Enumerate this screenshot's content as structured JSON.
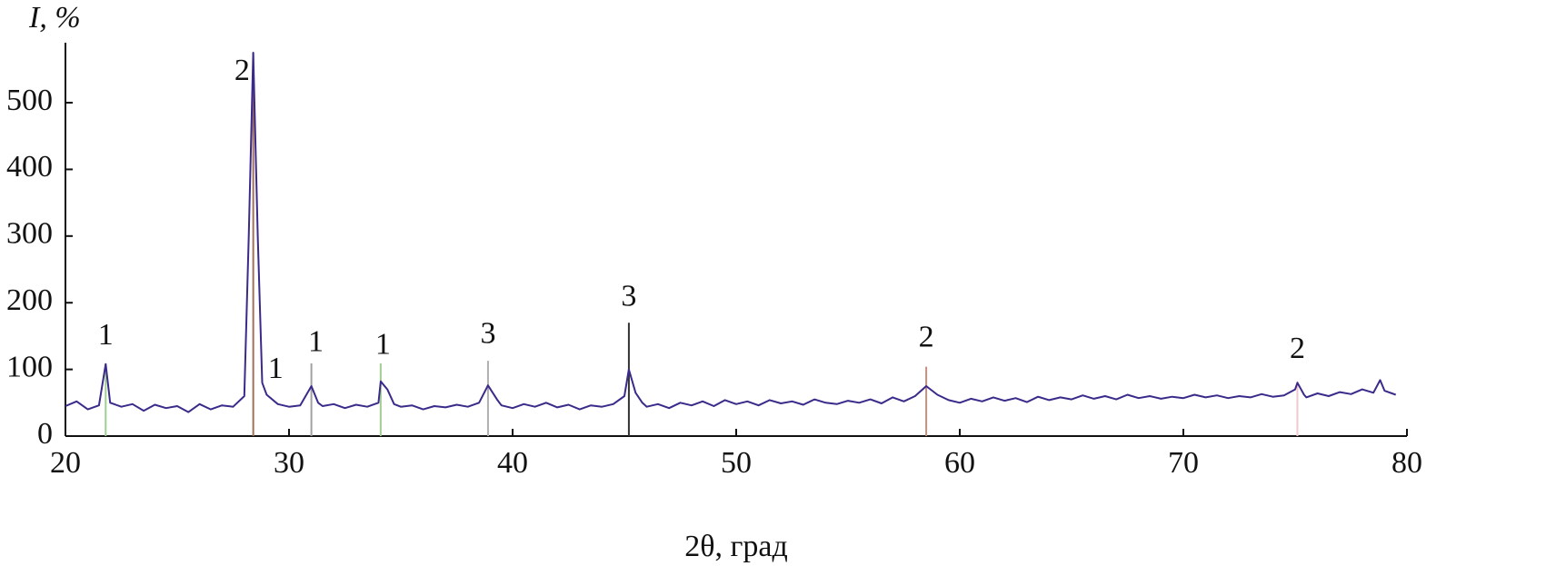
{
  "chart_data": {
    "type": "line",
    "ylabel": "I, %",
    "xlabel": "2θ, град",
    "color": "#3b2a8a",
    "xlim": [
      20,
      80
    ],
    "ylim": [
      0,
      590
    ],
    "xticks": [
      20,
      30,
      40,
      50,
      60,
      70,
      80
    ],
    "yticks": [
      0,
      100,
      200,
      300,
      400,
      500
    ],
    "grid": false,
    "x": [
      20,
      20.5,
      21,
      21.5,
      21.8,
      22,
      22.5,
      23,
      23.5,
      24,
      24.5,
      25,
      25.5,
      26,
      26.5,
      27,
      27.5,
      28,
      28.2,
      28.4,
      28.6,
      28.8,
      29,
      29.5,
      30,
      30.5,
      31,
      31.3,
      31.5,
      32,
      32.5,
      33,
      33.5,
      34,
      34.1,
      34.4,
      34.7,
      35,
      35.5,
      36,
      36.5,
      37,
      37.5,
      38,
      38.5,
      38.9,
      39.3,
      39.5,
      40,
      40.5,
      41,
      41.5,
      42,
      42.5,
      43,
      43.5,
      44,
      44.5,
      45,
      45.2,
      45.5,
      45.8,
      46,
      46.5,
      47,
      47.5,
      48,
      48.5,
      49,
      49.5,
      50,
      50.5,
      51,
      51.5,
      52,
      52.5,
      53,
      53.5,
      54,
      54.5,
      55,
      55.5,
      56,
      56.5,
      57,
      57.5,
      58,
      58.5,
      59,
      59.5,
      60,
      60.5,
      61,
      61.5,
      62,
      62.5,
      63,
      63.5,
      64,
      64.5,
      65,
      65.5,
      66,
      66.5,
      67,
      67.5,
      68,
      68.5,
      69,
      69.5,
      70,
      70.5,
      71,
      71.5,
      72,
      72.5,
      73,
      73.5,
      74,
      74.5,
      75,
      75.1,
      75.4,
      75.5,
      76,
      76.5,
      77,
      77.5,
      78,
      78.5,
      78.8,
      79,
      79.5
    ],
    "values": [
      45,
      52,
      40,
      46,
      108,
      50,
      44,
      48,
      38,
      47,
      42,
      45,
      36,
      48,
      40,
      46,
      44,
      60,
      300,
      575,
      300,
      80,
      62,
      48,
      44,
      46,
      75,
      50,
      45,
      48,
      42,
      47,
      44,
      50,
      82,
      70,
      48,
      44,
      46,
      40,
      45,
      43,
      47,
      44,
      50,
      76,
      55,
      46,
      42,
      48,
      44,
      50,
      43,
      47,
      40,
      46,
      44,
      48,
      60,
      100,
      65,
      50,
      44,
      48,
      42,
      50,
      46,
      52,
      45,
      54,
      48,
      52,
      46,
      54,
      49,
      52,
      47,
      55,
      50,
      48,
      53,
      50,
      55,
      49,
      58,
      52,
      60,
      75,
      62,
      54,
      50,
      56,
      52,
      58,
      53,
      57,
      51,
      59,
      54,
      58,
      55,
      61,
      56,
      60,
      55,
      62,
      57,
      60,
      56,
      59,
      57,
      62,
      58,
      61,
      57,
      60,
      58,
      63,
      59,
      61,
      70,
      80,
      62,
      58,
      64,
      60,
      66,
      63,
      70,
      65,
      84,
      68,
      62
    ],
    "sticks": {
      "x": [
        21.8,
        28.4,
        31.0,
        34.1,
        38.9,
        45.2,
        58.5,
        75.1
      ],
      "values": [
        109,
        575,
        109,
        109,
        113,
        170,
        104,
        82
      ],
      "colors": [
        "#9fcf8f",
        "#a0705a",
        "#a0a0a0",
        "#9fcf8f",
        "#b0b0b0",
        "#333333",
        "#c09080",
        "#f0c8d0"
      ]
    },
    "annotations": [
      {
        "text": "1",
        "x": 21.8,
        "y": 148
      },
      {
        "text": "2",
        "x": 27.9,
        "y": 545
      },
      {
        "text": "1",
        "x": 29.4,
        "y": 98
      },
      {
        "text": "1",
        "x": 31.2,
        "y": 138
      },
      {
        "text": "1",
        "x": 34.2,
        "y": 134
      },
      {
        "text": "3",
        "x": 38.9,
        "y": 150
      },
      {
        "text": "3",
        "x": 45.2,
        "y": 206
      },
      {
        "text": "2",
        "x": 58.5,
        "y": 145
      },
      {
        "text": "2",
        "x": 75.1,
        "y": 128
      }
    ]
  }
}
